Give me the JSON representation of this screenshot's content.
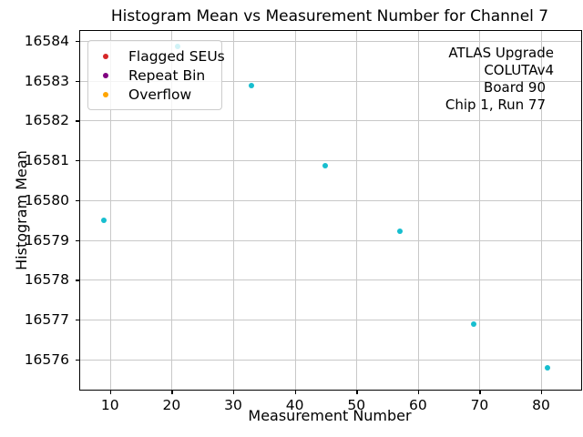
{
  "chart_data": {
    "type": "scatter",
    "title": "Histogram Mean vs Measurement Number for Channel 7",
    "xlabel": "Measurement Number",
    "ylabel": "Histogram Mean",
    "x_ticks": [
      10,
      20,
      30,
      40,
      50,
      60,
      70,
      80
    ],
    "y_ticks": [
      16584,
      16583,
      16582,
      16581,
      16580,
      16579,
      16578,
      16577,
      16576
    ],
    "xlim": [
      5.15,
      86.5
    ],
    "ylim": [
      16575.24,
      16584.25
    ],
    "grid": true,
    "point_color": "#17becf",
    "points": [
      {
        "x": 9,
        "y": 16579.49
      },
      {
        "x": 21,
        "y": 16583.86
      },
      {
        "x": 33,
        "y": 16582.87
      },
      {
        "x": 45,
        "y": 16580.87
      },
      {
        "x": 57,
        "y": 16579.21
      },
      {
        "x": 69,
        "y": 16576.89
      },
      {
        "x": 81,
        "y": 16575.79
      }
    ],
    "legend": {
      "position": "upper left",
      "entries": [
        {
          "label": "Flagged SEUs",
          "color": "#d62728"
        },
        {
          "label": "Repeat Bin",
          "color": "#800080"
        },
        {
          "label": "Overflow",
          "color": "#ffa500"
        }
      ]
    },
    "annotations": [
      {
        "lines": [
          "ATLAS Upgrade",
          "COLUTAv4"
        ]
      },
      {
        "lines": [
          "Board 90",
          "Chip 1, Run 77"
        ]
      }
    ]
  }
}
